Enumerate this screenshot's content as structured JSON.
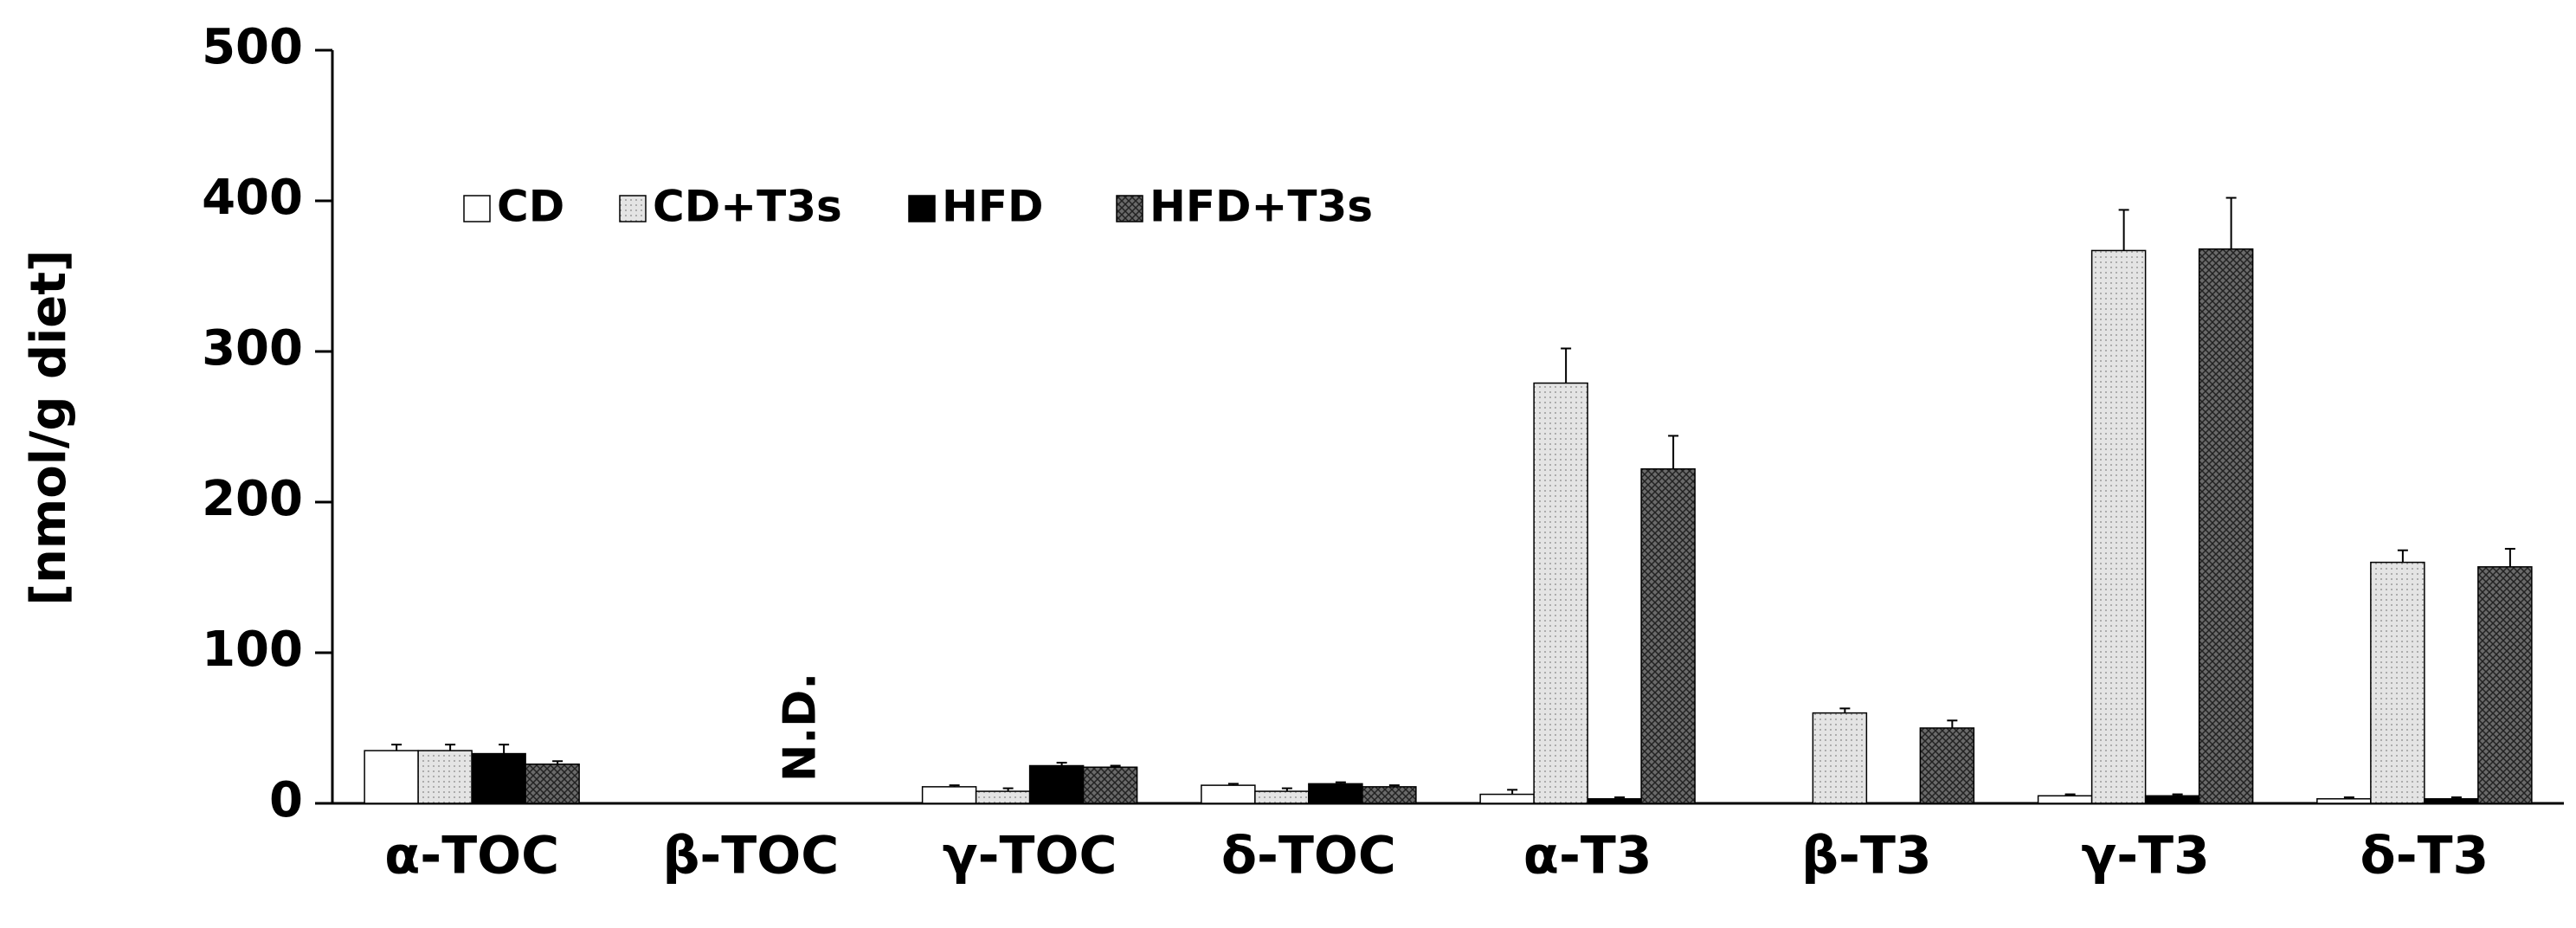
{
  "chart_data": {
    "type": "bar",
    "y_label": "[nmol/g diet]",
    "annotation": "N.D.",
    "categories": [
      "α-TOC",
      "β-TOC",
      "γ-TOC",
      "δ-TOC",
      "α-T3",
      "β-T3",
      "γ-T3",
      "δ-T3"
    ],
    "series": [
      {
        "name": "CD",
        "color": "#ffffff",
        "values": [
          35,
          null,
          11,
          12,
          6,
          null,
          5,
          3
        ],
        "errors": [
          4,
          null,
          1,
          1,
          3,
          null,
          1,
          1
        ]
      },
      {
        "name": "CD+T3s",
        "color": "#dcdcdc",
        "values": [
          35,
          null,
          8,
          8,
          279,
          60,
          367,
          160
        ],
        "errors": [
          4,
          null,
          2,
          2,
          23,
          3,
          27,
          8
        ]
      },
      {
        "name": "HFD",
        "color": "#000000",
        "values": [
          33,
          null,
          25,
          13,
          3,
          0,
          5,
          3
        ],
        "errors": [
          6,
          null,
          2,
          1,
          1,
          0,
          1,
          1
        ]
      },
      {
        "name": "HFD+T3s",
        "color": "#6a6a6a",
        "values": [
          26,
          null,
          24,
          11,
          222,
          50,
          368,
          157
        ],
        "errors": [
          2,
          null,
          1,
          1,
          22,
          5,
          34,
          12
        ]
      }
    ],
    "ylim": [
      0,
      500
    ],
    "yticks": [
      0,
      100,
      200,
      300,
      400,
      500
    ],
    "grid": false,
    "legend": "top-left"
  }
}
